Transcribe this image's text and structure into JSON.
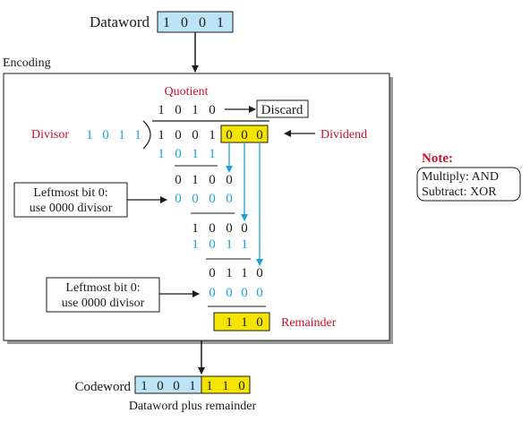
{
  "dataword": {
    "label": "Dataword",
    "bits": [
      "1",
      "0",
      "0",
      "1"
    ]
  },
  "encoding_label": "Encoding",
  "division": {
    "quotient_label": "Quotient",
    "quotient_bits": [
      "1",
      "0",
      "1",
      "0"
    ],
    "discard_label": "Discard",
    "divisor_label": "Divisor",
    "divisor_bits": [
      "1",
      "0",
      "1",
      "1"
    ],
    "dividend_label": "Dividend",
    "dividend_data_bits": [
      "1",
      "0",
      "0",
      "1"
    ],
    "dividend_zero_bits": [
      "0",
      "0",
      "0"
    ],
    "steps": [
      {
        "subtrahend": [
          "1",
          "0",
          "1",
          "1"
        ],
        "result": [
          "0",
          "1",
          "0",
          "0"
        ]
      },
      {
        "subtrahend": [
          "0",
          "0",
          "0",
          "0"
        ],
        "result": [
          "1",
          "0",
          "0",
          "0"
        ]
      },
      {
        "subtrahend": [
          "1",
          "0",
          "1",
          "1"
        ],
        "result": [
          "0",
          "1",
          "1",
          "0"
        ]
      },
      {
        "subtrahend": [
          "0",
          "0",
          "0",
          "0"
        ],
        "result": [
          "1",
          "1",
          "0"
        ]
      }
    ],
    "remainder_label": "Remainder",
    "callout_1": [
      "Leftmost bit 0:",
      "use 0000 divisor"
    ],
    "callout_2": [
      "Leftmost bit 0:",
      "use 0000 divisor"
    ]
  },
  "note": {
    "title": "Note:",
    "lines": [
      "Multiply: AND",
      "Subtract: XOR"
    ]
  },
  "codeword": {
    "label": "Codeword",
    "data_bits": [
      "1",
      "0",
      "0",
      "1"
    ],
    "remainder_bits": [
      "1",
      "1",
      "0"
    ],
    "caption": "Dataword plus remainder"
  },
  "colors": {
    "data_fill": "#bde3f6",
    "remainder_fill": "#f5e400",
    "red_text": "#c8102e",
    "blue_text": "#1aa3d6",
    "frame": "#1a1a1a"
  }
}
